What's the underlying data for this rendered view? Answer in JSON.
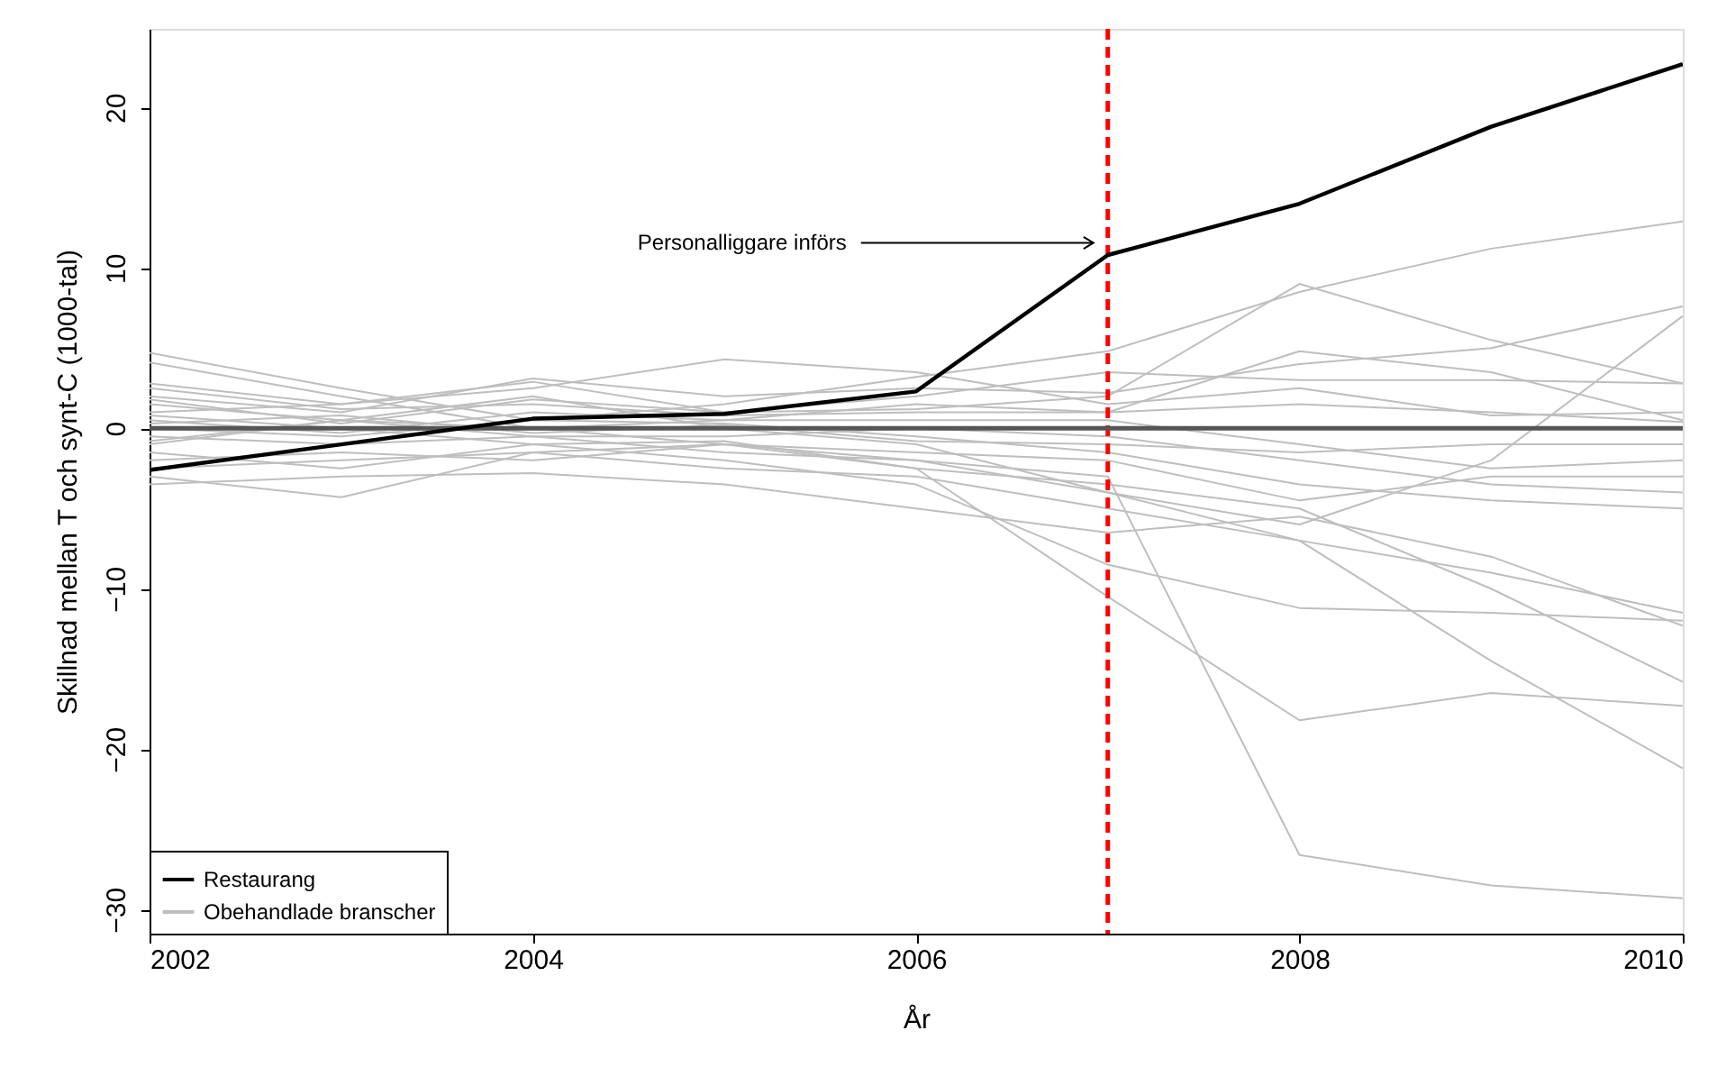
{
  "chart_data": {
    "type": "line",
    "xlabel": "År",
    "ylabel": "Skillnad mellan T och synt-C (1000-tal)",
    "x": [
      2002,
      2003,
      2004,
      2005,
      2006,
      2007,
      2008,
      2009,
      2010
    ],
    "xlim": [
      2002,
      2010
    ],
    "xticks": [
      2002,
      2004,
      2006,
      2008,
      2010
    ],
    "ylim": [
      -31.5,
      24.9
    ],
    "yticks": [
      -30,
      -20,
      -10,
      0,
      10,
      20
    ],
    "grid": false,
    "legend": "bottom left",
    "line_style": "solid",
    "marker": "none",
    "ref_lines": [
      {
        "axis": "x",
        "value": 2007,
        "label": null,
        "color": "#ff0000",
        "line_style": "dashed"
      },
      {
        "axis": "y",
        "value": 0,
        "label": null,
        "color": "#555555",
        "line_style": "solid"
      }
    ],
    "annotations": [
      "Personalliggare införs"
    ],
    "series": [
      {
        "name": "Obehandlade branscher",
        "color": "#bebebe",
        "values": [
          4.7,
          2.5,
          0.5,
          1.5,
          3.2,
          4.8,
          8.5,
          11.2,
          12.9
        ]
      },
      {
        "color": "#bebebe",
        "values": [
          2.8,
          1.5,
          2.9,
          1.0,
          1.2,
          2.0,
          9.0,
          5.5,
          2.8
        ]
      },
      {
        "color": "#bebebe",
        "values": [
          -0.5,
          -1.0,
          -0.5,
          -1.5,
          -2.0,
          -3.0,
          -26.6,
          -28.5,
          -29.3
        ]
      },
      {
        "color": "#bebebe",
        "values": [
          0.8,
          0.0,
          -1.0,
          -0.8,
          -2.5,
          -10.5,
          -18.2,
          -16.5,
          -17.3
        ]
      },
      {
        "color": "#bebebe",
        "values": [
          -1.5,
          -2.5,
          -1.0,
          -2.0,
          -3.5,
          -8.5,
          -11.2,
          -11.5,
          -12.0
        ]
      },
      {
        "color": "#bebebe",
        "values": [
          1.5,
          0.5,
          2.0,
          0.0,
          -1.0,
          -4.0,
          -7.0,
          -14.5,
          -21.2
        ]
      },
      {
        "color": "#bebebe",
        "values": [
          -3.0,
          -4.3,
          -1.5,
          -1.0,
          -2.5,
          -3.5,
          -5.0,
          -10.0,
          -15.8
        ]
      },
      {
        "color": "#bebebe",
        "values": [
          -0.8,
          0.5,
          0.0,
          -1.0,
          -2.0,
          -4.0,
          -6.0,
          -2.0,
          7.0
        ]
      },
      {
        "color": "#bebebe",
        "values": [
          2.0,
          1.0,
          3.1,
          2.0,
          2.5,
          2.2,
          4.0,
          5.0,
          7.6
        ]
      },
      {
        "color": "#bebebe",
        "values": [
          4.1,
          2.0,
          0.0,
          0.5,
          1.5,
          1.0,
          4.8,
          3.5,
          0.5
        ]
      },
      {
        "color": "#bebebe",
        "values": [
          -3.5,
          -3.0,
          -2.8,
          -3.5,
          -5.0,
          -6.5,
          -5.5,
          -8.0,
          -12.3
        ]
      },
      {
        "color": "#bebebe",
        "values": [
          0.0,
          -0.5,
          0.5,
          0.3,
          -0.5,
          -1.5,
          -3.5,
          -4.5,
          -5.0
        ]
      },
      {
        "color": "#bebebe",
        "values": [
          1.0,
          1.5,
          2.5,
          4.3,
          3.5,
          1.5,
          2.5,
          0.8,
          1.0
        ]
      },
      {
        "color": "#bebebe",
        "values": [
          -2.0,
          -1.5,
          -2.0,
          -1.0,
          -1.5,
          -2.0,
          -4.5,
          -3.0,
          -3.0
        ]
      },
      {
        "color": "#bebebe",
        "values": [
          0.5,
          -0.3,
          1.0,
          0.5,
          0.5,
          0.5,
          -1.0,
          -2.5,
          -2.0
        ]
      },
      {
        "color": "#bebebe",
        "values": [
          -1.0,
          0.5,
          -0.5,
          -0.5,
          0.0,
          -0.5,
          -2.0,
          -3.5,
          -4.0
        ]
      },
      {
        "color": "#bebebe",
        "values": [
          2.5,
          1.2,
          1.5,
          0.8,
          1.0,
          1.0,
          1.5,
          1.0,
          0.4
        ]
      },
      {
        "color": "#bebebe",
        "values": [
          -2.5,
          -2.0,
          -1.5,
          -2.5,
          -3.0,
          -5.0,
          -7.0,
          -9.0,
          -11.5
        ]
      },
      {
        "color": "#bebebe",
        "values": [
          0.3,
          0.8,
          -0.3,
          0.2,
          -0.8,
          -1.0,
          -1.5,
          -1.0,
          -1.0
        ]
      },
      {
        "color": "#bebebe",
        "values": [
          1.8,
          0.3,
          1.8,
          1.0,
          2.0,
          3.5,
          3.0,
          3.0,
          2.8
        ]
      },
      {
        "name": "Restaurang",
        "color": "#000000",
        "values": [
          -2.6,
          -1.0,
          0.6,
          0.9,
          2.3,
          10.8,
          14.0,
          18.8,
          22.7
        ]
      }
    ]
  }
}
